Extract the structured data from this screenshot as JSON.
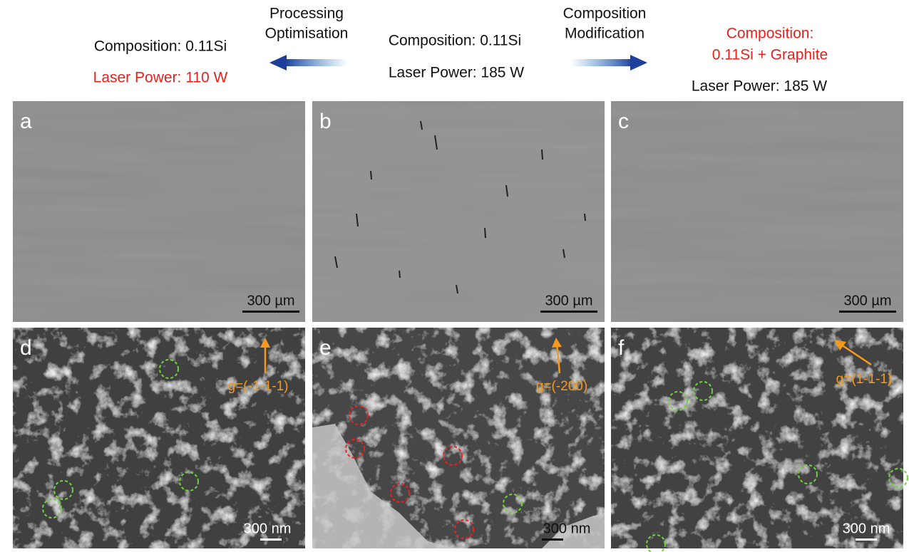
{
  "header": {
    "left": {
      "composition": "Composition: 0.11Si",
      "laser_power": "Laser Power: 110 W"
    },
    "arrow_left": [
      "Processing",
      "Optimisation"
    ],
    "center": {
      "composition": "Composition: 0.11Si",
      "laser_power": "Laser Power: 185 W"
    },
    "arrow_right": [
      "Composition",
      "Modification"
    ],
    "right": {
      "composition": [
        "Composition:",
        "0.11Si + Graphite"
      ],
      "laser_power": "Laser Power: 185 W"
    }
  },
  "panels": [
    {
      "label": "a",
      "scale_bar": "300 µm"
    },
    {
      "label": "b",
      "scale_bar": "300 µm"
    },
    {
      "label": "c",
      "scale_bar": "300 µm"
    },
    {
      "label": "d",
      "scale_bar": "300 nm",
      "annotation": "g=(-1-1-1)"
    },
    {
      "label": "e",
      "scale_bar": "300 nm",
      "annotation": "g=(-200)"
    },
    {
      "label": "f",
      "scale_bar": "300 nm",
      "annotation": "g=(1-1-1)"
    }
  ]
}
